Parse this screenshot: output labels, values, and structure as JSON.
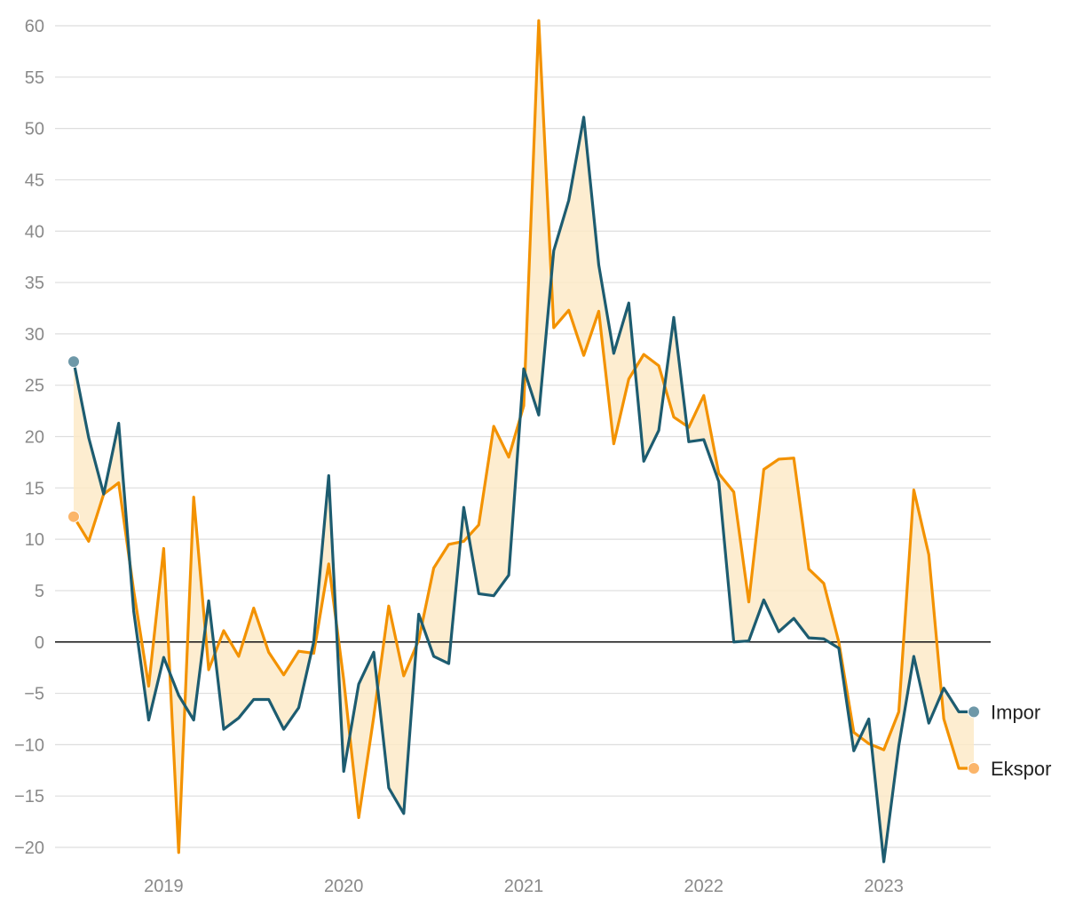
{
  "chart_data": {
    "type": "line",
    "title": "",
    "xlabel": "",
    "ylabel": "",
    "ylim": [
      -20,
      60
    ],
    "y_ticks": [
      -20,
      -15,
      -10,
      -5,
      0,
      5,
      10,
      15,
      20,
      25,
      30,
      35,
      40,
      45,
      50,
      55,
      60
    ],
    "x_tick_labels": [
      "2019",
      "2020",
      "2021",
      "2022",
      "2023"
    ],
    "grid": true,
    "fill_between_series": true,
    "months": 61,
    "first_month": "2018-07",
    "series": [
      {
        "name": "Impor",
        "color": "#1d5c70",
        "values": [
          27.3,
          19.9,
          14.4,
          21.3,
          3.0,
          -7.6,
          -1.5,
          -5.2,
          -7.6,
          4.0,
          -8.5,
          -7.4,
          -5.6,
          -5.6,
          -8.5,
          -6.4,
          0.0,
          16.2,
          -12.6,
          -4.1,
          -1.0,
          -14.2,
          -16.7,
          2.7,
          -1.4,
          -2.1,
          13.1,
          4.7,
          4.5,
          6.5,
          26.6,
          22.1,
          38.1,
          43.0,
          51.1,
          36.7,
          28.1,
          33.0,
          17.6,
          20.6,
          31.6,
          19.5,
          19.7,
          15.6,
          0.0,
          0.1,
          4.1,
          1.0,
          2.3,
          0.4,
          0.3,
          -0.6,
          -10.6,
          -7.5,
          -21.4,
          -10.1,
          -1.4,
          -7.9,
          -4.5,
          -6.8,
          -6.8
        ]
      },
      {
        "name": "Ekspor",
        "color": "#f39200",
        "values": [
          12.2,
          9.8,
          14.4,
          15.5,
          5.0,
          -4.3,
          9.1,
          -20.5,
          14.1,
          -2.7,
          1.1,
          -1.4,
          3.3,
          -1.0,
          -3.2,
          -0.9,
          -1.1,
          7.6,
          -3.7,
          -17.1,
          -7.3,
          3.5,
          -3.3,
          0.2,
          7.2,
          9.5,
          9.8,
          11.4,
          21.0,
          18.0,
          23.0,
          60.5,
          30.6,
          32.3,
          27.9,
          32.2,
          19.3,
          25.6,
          28.0,
          26.9,
          21.9,
          20.9,
          24.0,
          16.4,
          14.6,
          3.9,
          16.8,
          17.8,
          17.9,
          7.1,
          5.7,
          0.0,
          -8.8,
          -9.9,
          -10.5,
          -6.8,
          14.8,
          8.5,
          -7.5,
          -12.3,
          -12.3
        ]
      }
    ]
  }
}
